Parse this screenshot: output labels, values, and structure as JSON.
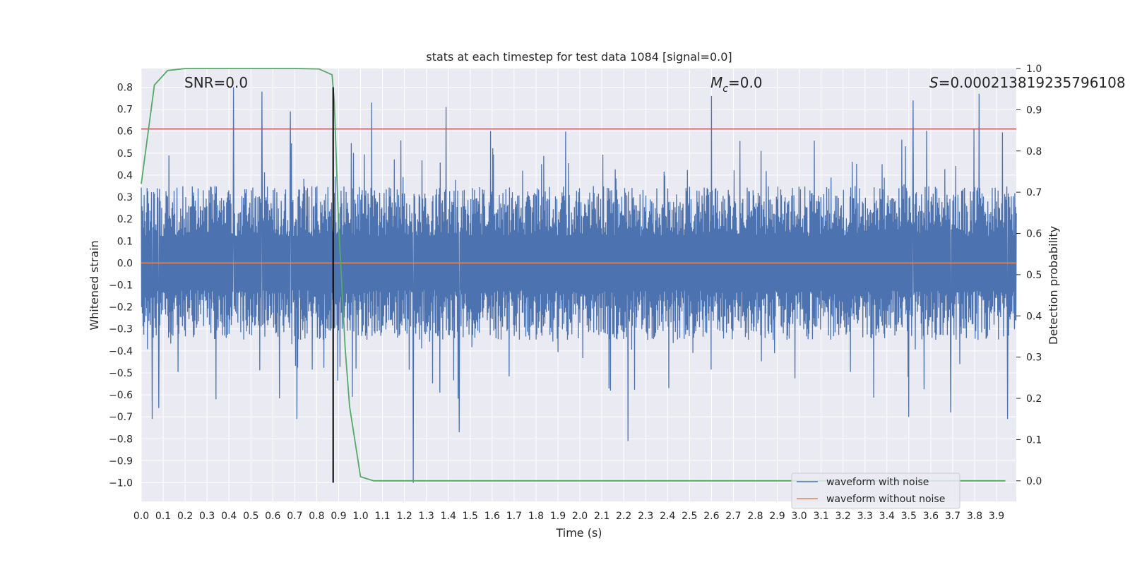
{
  "chart_data": {
    "type": "line",
    "title": "stats at each timestep for test data 1084 [signal=0.0]",
    "xlabel": "Time (s)",
    "ylabel": "Whitened strain",
    "y2label": "Detection probability",
    "xlim": [
      0.0,
      3.99
    ],
    "ylim": [
      -1.085,
      0.885
    ],
    "y2lim": [
      -0.05,
      1.0
    ],
    "x_ticks": [
      "0.0",
      "0.1",
      "0.2",
      "0.3",
      "0.4",
      "0.5",
      "0.6",
      "0.7",
      "0.8",
      "0.9",
      "1.0",
      "1.1",
      "1.2",
      "1.3",
      "1.4",
      "1.5",
      "1.6",
      "1.7",
      "1.8",
      "1.9",
      "2.0",
      "2.1",
      "2.2",
      "2.3",
      "2.4",
      "2.5",
      "2.6",
      "2.7",
      "2.8",
      "2.9",
      "3.0",
      "3.1",
      "3.2",
      "3.3",
      "3.4",
      "3.5",
      "3.6",
      "3.7",
      "3.8",
      "3.9"
    ],
    "y_ticks": [
      "0.8",
      "0.7",
      "0.6",
      "0.5",
      "0.4",
      "0.3",
      "0.2",
      "0.1",
      "0.0",
      "−0.1",
      "−0.2",
      "−0.3",
      "−0.4",
      "−0.5",
      "−0.6",
      "−0.7",
      "−0.8",
      "−0.9",
      "−1.0"
    ],
    "y2_ticks": [
      "1.0",
      "0.9",
      "0.8",
      "0.7",
      "0.6",
      "0.5",
      "0.4",
      "0.3",
      "0.2",
      "0.1",
      "0.0"
    ],
    "annotations": {
      "snr": "SNR=0.0",
      "mc_symbol": "M",
      "mc_sub": "c",
      "mc_value": "=0.0",
      "s_symbol": "S",
      "s_value": "=0.00021381923579610",
      "s_tail": "8"
    },
    "threshold_line": {
      "y": 0.61,
      "color": "#c44e52"
    },
    "merger_marker": {
      "x": 0.875,
      "y_from": -1.0,
      "y_to": 0.8,
      "color": "#000000"
    },
    "series": [
      {
        "name": "waveform with noise",
        "color": "#4c72b0",
        "axis": "left",
        "x_range": [
          0.0,
          3.99
        ],
        "amplitude_envelope": [
          0.35,
          0.8
        ],
        "peaks": [
          {
            "x": 0.42,
            "y": 0.8
          },
          {
            "x": 0.55,
            "y": 0.78
          },
          {
            "x": 0.68,
            "y": 0.69
          },
          {
            "x": 0.05,
            "y": -0.71
          },
          {
            "x": 0.08,
            "y": -0.66
          },
          {
            "x": 0.34,
            "y": -0.62
          },
          {
            "x": 0.71,
            "y": -0.71
          },
          {
            "x": 1.05,
            "y": 0.73
          },
          {
            "x": 1.24,
            "y": -1.0
          },
          {
            "x": 1.39,
            "y": 0.71
          },
          {
            "x": 1.45,
            "y": -0.77
          },
          {
            "x": 2.22,
            "y": -0.81
          },
          {
            "x": 2.6,
            "y": 0.76
          },
          {
            "x": 3.5,
            "y": -0.7
          },
          {
            "x": 3.69,
            "y": -0.68
          },
          {
            "x": 3.82,
            "y": 0.77
          },
          {
            "x": 3.95,
            "y": -0.71
          },
          {
            "x": 3.52,
            "y": 0.74
          }
        ]
      },
      {
        "name": "waveform without noise",
        "color": "#dd8452",
        "axis": "left",
        "x": [
          0.0,
          3.99
        ],
        "y": [
          0.0,
          0.0
        ]
      },
      {
        "name": "detection probability",
        "color": "#55a868",
        "axis": "right",
        "x": [
          0.0,
          0.06,
          0.12,
          0.2,
          0.3,
          0.5,
          0.7,
          0.81,
          0.87,
          0.88,
          0.9,
          0.93,
          0.94,
          0.95,
          1.0,
          1.06,
          1.2,
          2.0,
          3.0,
          3.94
        ],
        "y": [
          0.72,
          0.96,
          0.995,
          1.0,
          1.0,
          1.0,
          1.0,
          0.999,
          0.985,
          0.92,
          0.62,
          0.32,
          0.25,
          0.18,
          0.01,
          0.0,
          0.0,
          0.0,
          0.0,
          0.0
        ]
      }
    ],
    "legend": {
      "placement": "lower-right",
      "entries": [
        {
          "label": "waveform with noise",
          "color": "#4c72b0"
        },
        {
          "label": "waveform without noise",
          "color": "#dd8452"
        }
      ]
    },
    "grid": true
  }
}
